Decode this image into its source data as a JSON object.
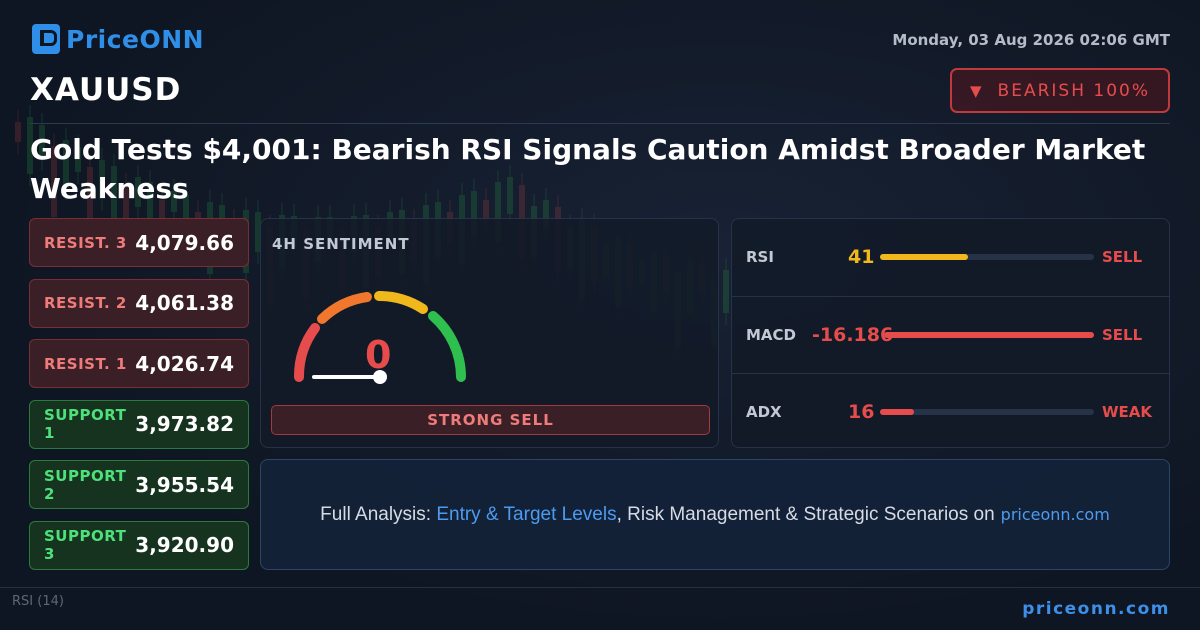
{
  "brand": {
    "name": "PriceONN",
    "accent": "#2f8fe8"
  },
  "datetime": "Monday, 03 Aug 2026 02:06 GMT",
  "symbol": "XAUUSD",
  "badge": {
    "icon": "triangle-down-icon",
    "label": "BEARISH 100%",
    "color": "#e74c4c"
  },
  "headline": "Gold Tests $4,001: Bearish RSI Signals Caution Amidst Broader Market Weakness",
  "levels": [
    {
      "name": "RESIST. 3",
      "value": "4,079.66",
      "type": "resistance"
    },
    {
      "name": "RESIST. 2",
      "value": "4,061.38",
      "type": "resistance"
    },
    {
      "name": "RESIST. 1",
      "value": "4,026.74",
      "type": "resistance"
    },
    {
      "name": "SUPPORT 1",
      "value": "3,973.82",
      "type": "support"
    },
    {
      "name": "SUPPORT 2",
      "value": "3,955.54",
      "type": "support"
    },
    {
      "name": "SUPPORT 3",
      "value": "3,920.90",
      "type": "support"
    }
  ],
  "sentiment": {
    "title": "4H SENTIMENT",
    "value": "0",
    "gauge_level": 0,
    "label": "STRONG SELL"
  },
  "indicators": [
    {
      "name": "RSI",
      "value": "41",
      "fill": 0.41,
      "signal": "SELL",
      "value_color": "#f1b81c",
      "bar_color": "#f1b81c",
      "signal_color": "#e74c4c"
    },
    {
      "name": "MACD",
      "value": "-16.186",
      "fill": 1.0,
      "signal": "SELL",
      "value_color": "#e74c4c",
      "bar_color": "#e74c4c",
      "signal_color": "#e74c4c"
    },
    {
      "name": "ADX",
      "value": "16",
      "fill": 0.16,
      "signal": "WEAK",
      "value_color": "#e74c4c",
      "bar_color": "#e74c4c",
      "signal_color": "#e74c4c"
    }
  ],
  "cta": {
    "prefix": "Full Analysis: ",
    "highlight": "Entry & Target Levels",
    "suffix": ", Risk Management & Strategic Scenarios on",
    "domain": "priceonn.com"
  },
  "footer": {
    "rsi_label": "RSI",
    "rsi_period": "(14)",
    "domain": "priceonn.com"
  }
}
